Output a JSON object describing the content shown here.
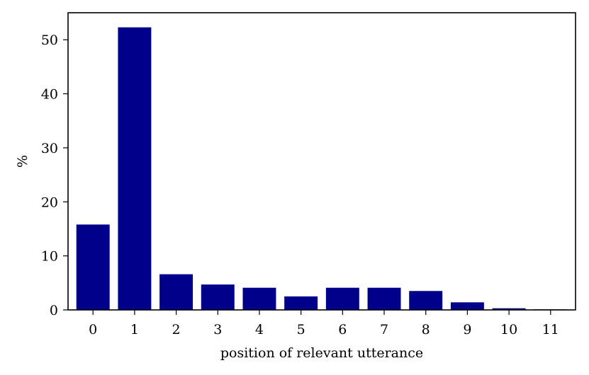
{
  "chart_data": {
    "type": "bar",
    "categories": [
      "0",
      "1",
      "2",
      "3",
      "4",
      "5",
      "6",
      "7",
      "8",
      "9",
      "10",
      "11"
    ],
    "values": [
      15.8,
      52.3,
      6.6,
      4.7,
      4.1,
      2.5,
      4.1,
      4.1,
      3.5,
      1.4,
      0.3,
      0.1
    ],
    "xlabel": "position of relevant utterance",
    "ylabel": "%",
    "ylim": [
      0,
      55
    ],
    "yticks": [
      0,
      10,
      20,
      30,
      40,
      50
    ],
    "bar_color": "#00008b",
    "grid": false
  }
}
